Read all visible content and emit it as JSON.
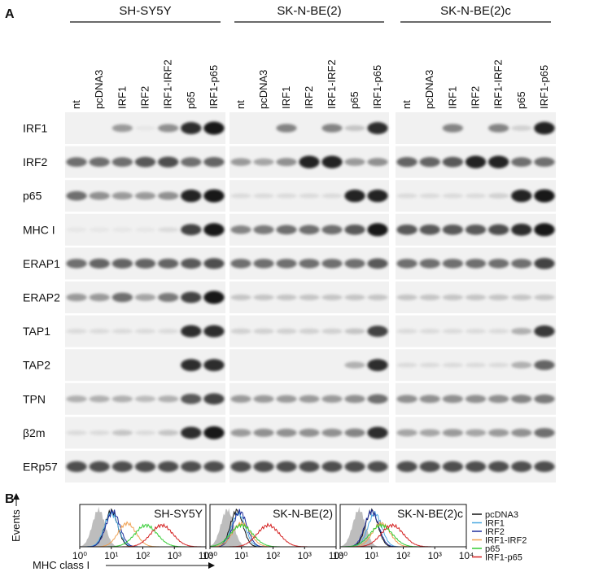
{
  "panel_labels": [
    "A",
    "B"
  ],
  "cell_lines": [
    "SH-SY5Y",
    "SK-N-BE(2)",
    "SK-N-BE(2)c"
  ],
  "lanes": [
    "nt",
    "pcDNA3",
    "IRF1",
    "IRF2",
    "IRF1-IRF2",
    "p65",
    "IRF1-p65"
  ],
  "proteins": [
    "IRF1",
    "IRF2",
    "p65",
    "MHC I",
    "ERAP1",
    "ERAP2",
    "TAP1",
    "TAP2",
    "TPN",
    "β2m",
    "ERp57"
  ],
  "flow": {
    "y_label": "Events",
    "x_label": "MHC class I",
    "x_ticks": [
      "10⁰",
      "10¹",
      "10²",
      "10³",
      "10⁴"
    ],
    "legend": [
      {
        "name": "pcDNA3",
        "color": "#111111"
      },
      {
        "name": "IRF1",
        "color": "#4aa8e0"
      },
      {
        "name": "IRF2",
        "color": "#1f2f9c"
      },
      {
        "name": "IRF1-IRF2",
        "color": "#f0a050"
      },
      {
        "name": "p65",
        "color": "#33cc33"
      },
      {
        "name": "IRF1-p65",
        "color": "#d42020"
      }
    ]
  }
}
